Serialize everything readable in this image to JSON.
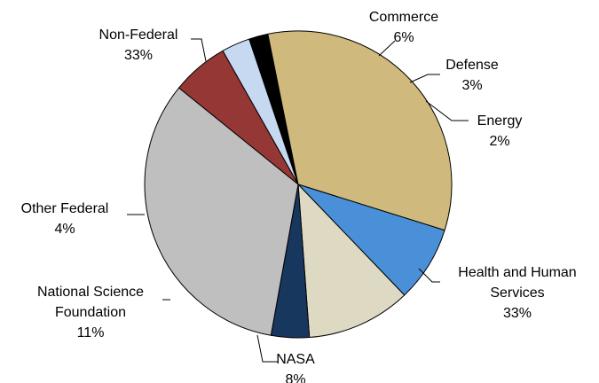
{
  "chart_data": {
    "type": "pie",
    "slices": [
      {
        "label_lines": [
          "Commerce"
        ],
        "value_label": "6%",
        "value": 6,
        "color": "#953735"
      },
      {
        "label_lines": [
          "Defense"
        ],
        "value_label": "3%",
        "value": 3,
        "color": "#c6d9f1"
      },
      {
        "label_lines": [
          "Energy"
        ],
        "value_label": "2%",
        "value": 2,
        "color": "#000000"
      },
      {
        "label_lines": [
          "Health and Human",
          "Services"
        ],
        "value_label": "33%",
        "value": 33,
        "color": "#cfb97c"
      },
      {
        "label_lines": [
          "NASA"
        ],
        "value_label": "8%",
        "value": 8,
        "color": "#4a90d9"
      },
      {
        "label_lines": [
          "National Science",
          "Foundation"
        ],
        "value_label": "11%",
        "value": 11,
        "color": "#ddd9c3"
      },
      {
        "label_lines": [
          "Other Federal"
        ],
        "value_label": "4%",
        "value": 4,
        "color": "#17375e"
      },
      {
        "label_lines": [
          "Non-Federal"
        ],
        "value_label": "33%",
        "value": 33,
        "color": "#bfbfbf"
      }
    ]
  }
}
